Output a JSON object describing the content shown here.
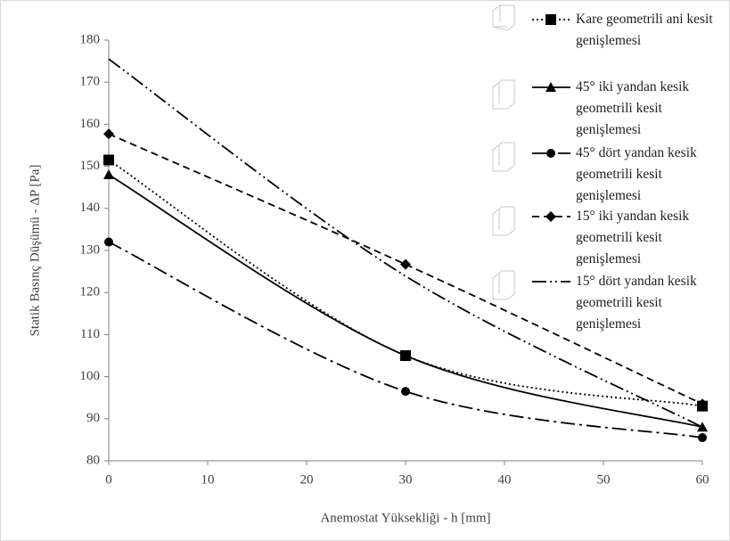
{
  "chart_data": {
    "type": "line",
    "x_label": "Anemostat Yüksekliği - h [mm]",
    "y_label": "Statik Basınç Düşümü - ΔP [Pa]",
    "x": [
      0,
      30,
      60
    ],
    "xlim": [
      0,
      60
    ],
    "xticks": [
      0,
      10,
      20,
      30,
      40,
      50,
      60
    ],
    "ylim": [
      80,
      180
    ],
    "yticks": [
      80,
      90,
      100,
      110,
      120,
      130,
      140,
      150,
      160,
      170,
      180
    ],
    "smooth": true,
    "series": [
      {
        "name": "Kare geometrili ani kesit genişlemesi",
        "color": "#000000",
        "marker": "square",
        "dash": "2 3",
        "values": [
          151.5,
          105,
          93
        ]
      },
      {
        "name": "45° iki yandan kesik geometrili kesit genişlemesi",
        "color": "#000000",
        "marker": "triangle",
        "dash": "none",
        "values": [
          148,
          105,
          88
        ]
      },
      {
        "name": "45° dört yandan kesik geometrili kesit genişlemesi",
        "color": "#000000",
        "marker": "circle",
        "dash": "16 5 3 5",
        "values": [
          132,
          96.5,
          85.5
        ]
      },
      {
        "name": "15° iki yandan kesik geometrili kesit genişlemesi",
        "color": "#000000",
        "marker": "diamond",
        "dash": "8 5",
        "values": [
          157.7,
          126.7,
          93.5
        ]
      },
      {
        "name": "15° dört yandan kesik geometrili kesit genişlemesi",
        "color": "#000000",
        "marker": "none",
        "dash": "16 4 2 4 2 4",
        "values": [
          175.5,
          123.9,
          88
        ]
      }
    ]
  }
}
